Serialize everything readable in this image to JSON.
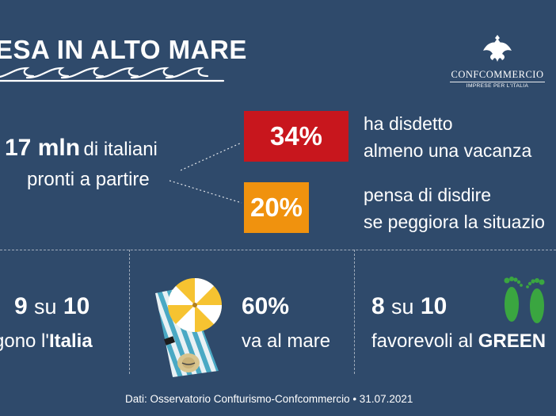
{
  "header": {
    "title": "ESA IN ALTO MARE",
    "logo": {
      "name": "CONFCOMMERCIO",
      "subtitle": "IMPRESE PER L'ITALIA",
      "icon": "eagle-icon"
    }
  },
  "lead": {
    "number": "17 mln",
    "line1_rest": "di italiani",
    "line2": "pronti a partire"
  },
  "badges": [
    {
      "value": "34%",
      "color": "#c8161d",
      "line1": "ha disdetto",
      "line2": "almeno una vacanza"
    },
    {
      "value": "20%",
      "color": "#f0920e",
      "line1": "pensa di disdire",
      "line2": "se peggiora la situazio"
    }
  ],
  "bottom": {
    "italy": {
      "num": "9",
      "su": "su",
      "den": "10",
      "text_pre": "gono l'",
      "text_bold": "Italia"
    },
    "sea": {
      "value": "60%",
      "text": "va al mare",
      "icon": "beach-umbrella-icon"
    },
    "green": {
      "num": "8",
      "su": "su",
      "den": "10",
      "text_pre": "favorevoli al ",
      "text_bold": "GREEN",
      "icon": "footprints-icon"
    }
  },
  "footer": "Dati: Osservatorio Confturismo-Confcommercio • 31.07.2021",
  "colors": {
    "background": "#2f4a6b",
    "red": "#c8161d",
    "orange": "#f0920e",
    "green": "#3aa640"
  }
}
